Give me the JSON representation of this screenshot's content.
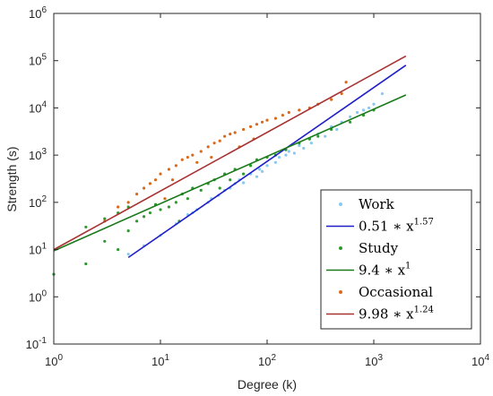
{
  "chart_data": {
    "type": "scatter",
    "title": "",
    "xlabel": "Degree (k)",
    "ylabel": "Strength (s)",
    "xscale": "log",
    "yscale": "log",
    "xlim": [
      1,
      10000
    ],
    "ylim": [
      0.1,
      1000000
    ],
    "xticks": [
      {
        "value": 1,
        "base": "10",
        "exp": "0"
      },
      {
        "value": 10,
        "base": "10",
        "exp": "1"
      },
      {
        "value": 100,
        "base": "10",
        "exp": "2"
      },
      {
        "value": 1000,
        "base": "10",
        "exp": "3"
      },
      {
        "value": 10000,
        "base": "10",
        "exp": "4"
      }
    ],
    "yticks": [
      {
        "value": 0.1,
        "base": "10",
        "exp": "-1"
      },
      {
        "value": 1,
        "base": "10",
        "exp": "0"
      },
      {
        "value": 10,
        "base": "10",
        "exp": "1"
      },
      {
        "value": 100,
        "base": "10",
        "exp": "2"
      },
      {
        "value": 1000,
        "base": "10",
        "exp": "3"
      },
      {
        "value": 10000,
        "base": "10",
        "exp": "4"
      },
      {
        "value": 100000,
        "base": "10",
        "exp": "5"
      },
      {
        "value": 1000000,
        "base": "10",
        "exp": "6"
      }
    ],
    "grid": false,
    "legend_position": "bottom-right",
    "series": [
      {
        "name": "Work",
        "kind": "scatter",
        "color": "#87c8f0",
        "x": [
          5,
          7,
          10,
          14,
          18,
          22,
          28,
          35,
          45,
          55,
          70,
          85,
          100,
          130,
          160,
          200,
          250,
          300,
          400,
          500,
          600,
          800,
          1000,
          1200,
          20,
          40,
          60,
          90,
          120,
          180,
          260,
          350,
          450,
          700,
          900,
          30,
          50,
          80,
          150,
          220
        ],
        "y": [
          8,
          12,
          20,
          35,
          55,
          70,
          100,
          140,
          200,
          300,
          400,
          500,
          600,
          900,
          1200,
          1600,
          2200,
          2800,
          4000,
          5000,
          6500,
          9000,
          12000,
          20000,
          60,
          180,
          260,
          450,
          700,
          1100,
          1800,
          2500,
          3500,
          8000,
          10000,
          120,
          250,
          350,
          1000,
          1400
        ]
      },
      {
        "name": "0.51 * x^1.57",
        "kind": "line",
        "color": "#1f1fc8",
        "legend_base": "0.51 ∗ x",
        "legend_exp": "1.57",
        "x": [
          5,
          2000
        ],
        "y": [
          6.8,
          80000
        ]
      },
      {
        "name": "Study",
        "kind": "scatter",
        "color": "#2e9a2e",
        "x": [
          1,
          2,
          2,
          3,
          3,
          4,
          4,
          5,
          5,
          6,
          7,
          8,
          9,
          10,
          12,
          14,
          16,
          18,
          20,
          24,
          28,
          32,
          36,
          40,
          45,
          50,
          60,
          70,
          80,
          100,
          120,
          150,
          200,
          250,
          300,
          400,
          600,
          800,
          1000,
          15
        ],
        "y": [
          3,
          5,
          30,
          15,
          45,
          10,
          60,
          25,
          80,
          40,
          50,
          60,
          90,
          70,
          80,
          100,
          150,
          120,
          200,
          180,
          250,
          300,
          200,
          400,
          300,
          500,
          400,
          600,
          800,
          900,
          1000,
          1300,
          1800,
          2200,
          2500,
          3500,
          5000,
          7000,
          9000,
          40
        ]
      },
      {
        "name": "9.4 * x^1",
        "kind": "line",
        "color": "#1a7a1a",
        "legend_base": "9.4 ∗ x",
        "legend_exp": "1",
        "x": [
          1,
          2000
        ],
        "y": [
          9.4,
          18800
        ]
      },
      {
        "name": "Occasional",
        "kind": "scatter",
        "color": "#d96a1c",
        "x": [
          3,
          4,
          5,
          6,
          7,
          8,
          9,
          10,
          12,
          14,
          16,
          18,
          20,
          24,
          28,
          32,
          36,
          40,
          45,
          50,
          60,
          70,
          80,
          90,
          100,
          120,
          140,
          160,
          200,
          250,
          300,
          400,
          500,
          550,
          11,
          13,
          22,
          30,
          55,
          75
        ],
        "y": [
          40,
          80,
          100,
          150,
          200,
          250,
          300,
          400,
          500,
          600,
          800,
          900,
          1000,
          1200,
          1500,
          1800,
          2000,
          2500,
          2800,
          3000,
          3500,
          4000,
          4500,
          5000,
          5500,
          6000,
          7000,
          8000,
          9000,
          10000,
          12000,
          15000,
          20000,
          35000,
          120,
          300,
          700,
          900,
          1500,
          2200
        ]
      },
      {
        "name": "9.98 * x^1.24",
        "kind": "line",
        "color": "#a83232",
        "legend_base": "9.98 ∗ x",
        "legend_exp": "1.24",
        "x": [
          1,
          2000
        ],
        "y": [
          9.98,
          125000
        ]
      }
    ]
  }
}
